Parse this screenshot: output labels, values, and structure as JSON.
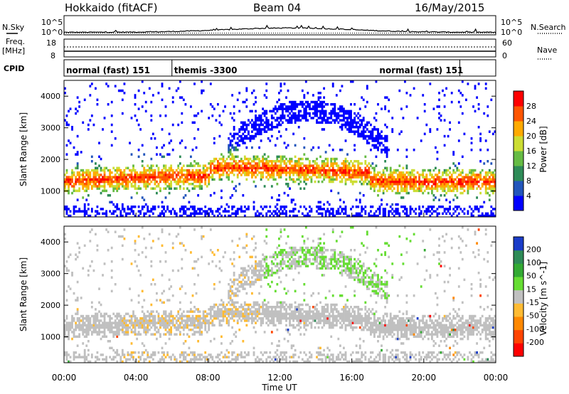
{
  "header": {
    "station": "Hokkaido (fitACF)",
    "beam": "Beam 04",
    "date": "16/May/2015"
  },
  "left_labels": {
    "nsky": "N.Sky",
    "freq": "Freq.",
    "mhz": "[MHz]",
    "cpid": "CPID"
  },
  "right_labels": {
    "nsearch": "N.Search",
    "nave": "Nave"
  },
  "noise_axis": {
    "top": "10^5",
    "bottom": "10^0",
    "top_r": "10^5",
    "bottom_r": "10^0"
  },
  "freq_axis": {
    "left_ticks": [
      "18",
      "8"
    ],
    "right_ticks": [
      "60",
      "0"
    ]
  },
  "cpid_segments": [
    {
      "label": "normal (fast) 151",
      "start_h": 0,
      "end_h": 6
    },
    {
      "label": "themis -3300",
      "start_h": 6,
      "end_h": 22
    },
    {
      "label": "normal (fast) 151",
      "start_h": 22,
      "end_h": 24
    }
  ],
  "x_axis": {
    "ticks": [
      "00:00",
      "04:00",
      "08:00",
      "12:00",
      "16:00",
      "20:00",
      "00:00"
    ],
    "label": "Time UT"
  },
  "power_panel": {
    "ylabel": "Slant Range [km]",
    "yticks": [
      "1000",
      "2000",
      "3000",
      "4000"
    ],
    "colorbar_label": "Power [dB]",
    "colorbar_ticks": [
      "4",
      "8",
      "12",
      "16",
      "20",
      "24",
      "28"
    ],
    "colors": [
      "#0000ff",
      "#2255bb",
      "#2e8b57",
      "#66bb44",
      "#ccdd33",
      "#ffaa00",
      "#ff5500",
      "#ff0000"
    ]
  },
  "velocity_panel": {
    "ylabel": "Slant Range [km]",
    "yticks": [
      "1000",
      "2000",
      "3000",
      "4000"
    ],
    "colorbar_label": "Velocity [m s^-1]",
    "colorbar_ticks": [
      "200",
      "100",
      "50",
      "15",
      "-15",
      "-50",
      "-100",
      "-200"
    ],
    "colors": [
      "#1a3cc8",
      "#2e8b57",
      "#33aa33",
      "#66dd33",
      "#c0c0c0",
      "#ffbb33",
      "#ff8800",
      "#ff4400",
      "#ff0000"
    ]
  },
  "chart_data": {
    "type": "heatmap",
    "x_range_hours": [
      0,
      24
    ],
    "y_range_km": [
      180,
      4500
    ],
    "panels": [
      "Power [dB]",
      "Velocity [m s^-1]"
    ]
  }
}
